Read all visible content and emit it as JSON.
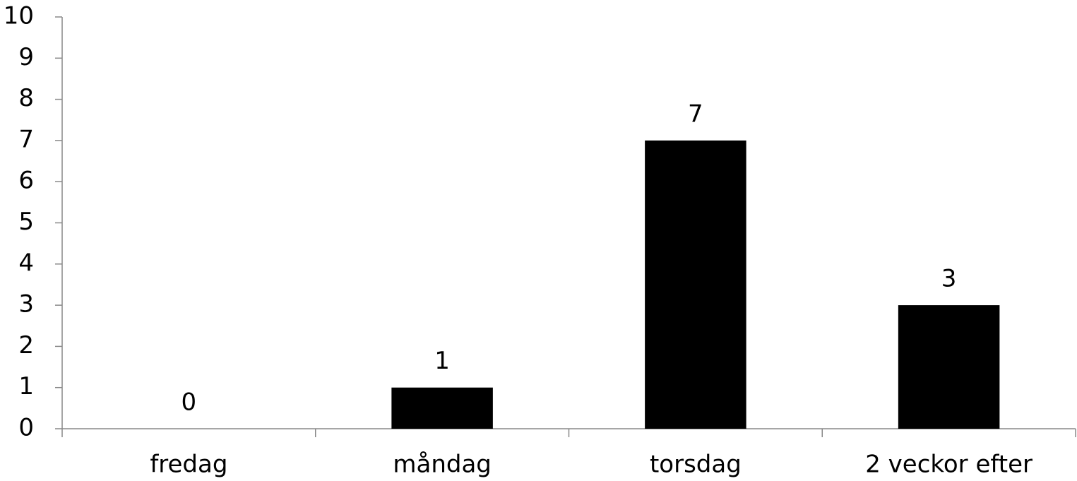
{
  "chart_data": {
    "type": "bar",
    "categories": [
      "fredag",
      "måndag",
      "torsdag",
      "2 veckor efter"
    ],
    "values": [
      0,
      1,
      7,
      3
    ],
    "color": "#000000",
    "ylim": [
      0,
      10
    ],
    "yticks": [
      0,
      1,
      2,
      3,
      4,
      5,
      6,
      7,
      8,
      9,
      10
    ],
    "grid": false
  }
}
